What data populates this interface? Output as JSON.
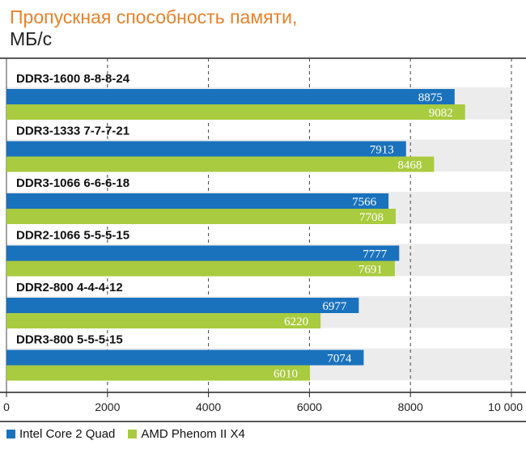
{
  "colors": {
    "intel": "#1a72bd",
    "amd": "#a9cb3f",
    "title": "#e8822a",
    "band": "#ececec",
    "axis": "#222222"
  },
  "chart_data": {
    "type": "bar",
    "orientation": "horizontal",
    "title": "Пропускная способность памяти,",
    "subtitle": "МБ/с",
    "categories": [
      "DDR3-1600 8-8-8-24",
      "DDR3-1333 7-7-7-21",
      "DDR3-1066 6-6-6-18",
      "DDR2-1066 5-5-5-15",
      "DDR2-800 4-4-4-12",
      "DDR3-800 5-5-5-15"
    ],
    "series": [
      {
        "name": "Intel Core 2 Quad",
        "color": "#1a72bd",
        "values": [
          8875,
          7913,
          7566,
          7777,
          6977,
          7074
        ]
      },
      {
        "name": "AMD Phenom II X4",
        "color": "#a9cb3f",
        "values": [
          9082,
          8468,
          7708,
          7691,
          6220,
          6010
        ]
      }
    ],
    "xlim": [
      0,
      10000
    ],
    "xticks": [
      0,
      2000,
      4000,
      6000,
      8000,
      10000
    ],
    "xtick_labels": [
      "0",
      "2000",
      "4000",
      "6000",
      "8000",
      "10 000"
    ],
    "grid": "vertical dashed",
    "legend": "bottom-left"
  }
}
